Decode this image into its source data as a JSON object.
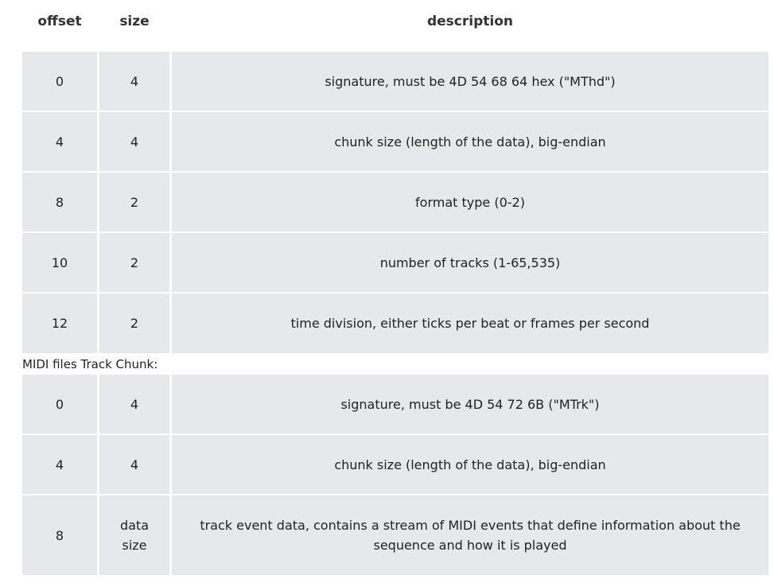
{
  "columns": {
    "offset": "offset",
    "size": "size",
    "description": "description"
  },
  "header_chunk_rows": [
    {
      "offset": "0",
      "size": "4",
      "description": "signature, must be 4D 54 68 64 hex (\"MThd\")"
    },
    {
      "offset": "4",
      "size": "4",
      "description": "chunk size (length of the data), big-endian"
    },
    {
      "offset": "8",
      "size": "2",
      "description": "format type (0-2)"
    },
    {
      "offset": "10",
      "size": "2",
      "description": "number of tracks (1-65,535)"
    },
    {
      "offset": "12",
      "size": "2",
      "description": "time division, either ticks per beat or frames per second"
    }
  ],
  "track_chunk_label": "MIDI files Track Chunk:",
  "track_chunk_rows": [
    {
      "offset": "0",
      "size": "4",
      "description": "signature, must be 4D 54 72 6B (\"MTrk\")"
    },
    {
      "offset": "4",
      "size": "4",
      "description": "chunk size (length of the data), big-endian"
    },
    {
      "offset": "8",
      "size": "data size",
      "description": "track event data, contains a stream of MIDI events that define information about the sequence and how it is played"
    }
  ]
}
